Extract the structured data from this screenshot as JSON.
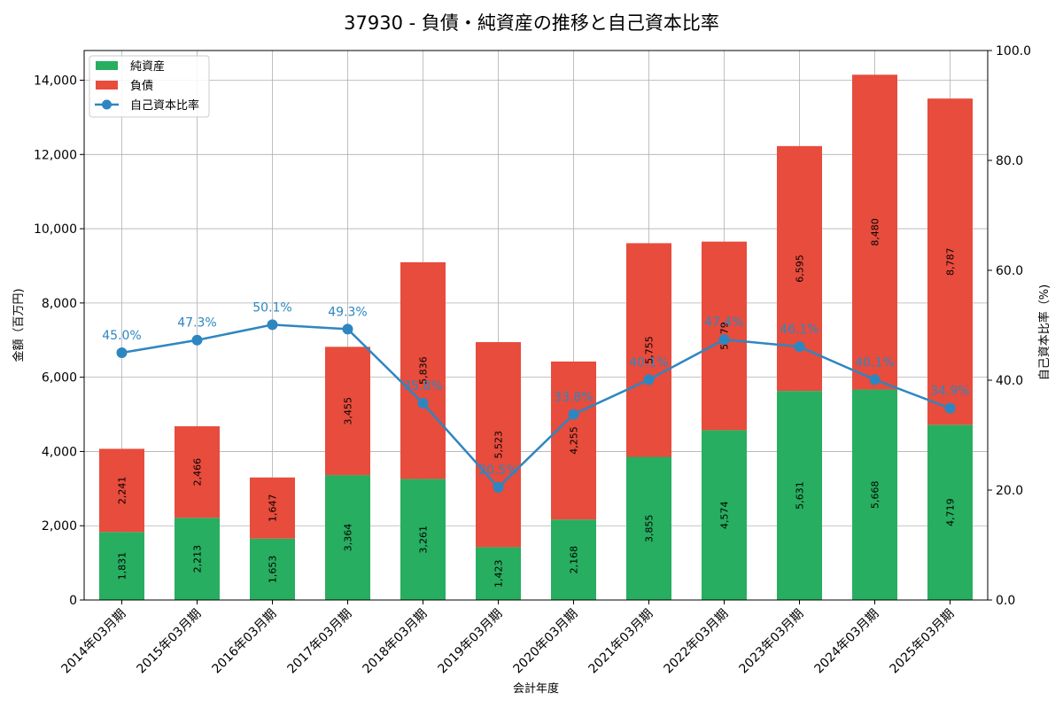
{
  "chart_data": {
    "type": "bar",
    "stacked": true,
    "title": "37930 - 負債・純資産の推移と自己資本比率",
    "xlabel": "会計年度",
    "ylabel": "金額（百万円)",
    "y2label": "自己資本比率（%)",
    "ylim": [
      0,
      14800
    ],
    "y2lim": [
      0,
      100
    ],
    "yticks": [
      0,
      2000,
      4000,
      6000,
      8000,
      10000,
      12000,
      14000
    ],
    "ytick_labels": [
      "0",
      "2,000",
      "4,000",
      "6,000",
      "8,000",
      "10,000",
      "12,000",
      "14,000"
    ],
    "y2ticks": [
      0,
      20,
      40,
      60,
      80,
      100
    ],
    "y2tick_labels": [
      "0.0",
      "20.0",
      "40.0",
      "60.0",
      "80.0",
      "100.0"
    ],
    "grid": true,
    "legend_position": "top-left",
    "categories": [
      "2014年03月期",
      "2015年03月期",
      "2016年03月期",
      "2017年03月期",
      "2018年03月期",
      "2019年03月期",
      "2020年03月期",
      "2021年03月期",
      "2022年03月期",
      "2023年03月期",
      "2024年03月期",
      "2025年03月期"
    ],
    "series": [
      {
        "name": "純資産",
        "color": "#27ae60",
        "values": [
          1831,
          2213,
          1653,
          3364,
          3261,
          1423,
          2168,
          3855,
          4574,
          5631,
          5668,
          4719
        ],
        "labels": [
          "1,831",
          "2,213",
          "1,653",
          "3,364",
          "3,261",
          "1,423",
          "2,168",
          "3,855",
          "4,574",
          "5,631",
          "5,668",
          "4,719"
        ]
      },
      {
        "name": "負債",
        "color": "#e74c3c",
        "values": [
          2241,
          2466,
          1647,
          3455,
          5836,
          5523,
          4255,
          5755,
          5079,
          6595,
          8480,
          8787
        ],
        "labels": [
          "2,241",
          "2,466",
          "1,647",
          "3,455",
          "5,836",
          "5,523",
          "4,255",
          "5,755",
          "5,079",
          "6,595",
          "8,480",
          "8,787"
        ]
      },
      {
        "name": "自己資本比率",
        "type": "line",
        "axis": "right",
        "color": "#2e86c1",
        "values": [
          45.0,
          47.3,
          50.1,
          49.3,
          35.8,
          20.5,
          33.8,
          40.1,
          47.4,
          46.1,
          40.1,
          34.9
        ],
        "labels": [
          "45.0%",
          "47.3%",
          "50.1%",
          "49.3%",
          "35.8%",
          "20.5%",
          "33.8%",
          "40.1%",
          "47.4%",
          "46.1%",
          "40.1%",
          "34.9%"
        ]
      }
    ]
  }
}
